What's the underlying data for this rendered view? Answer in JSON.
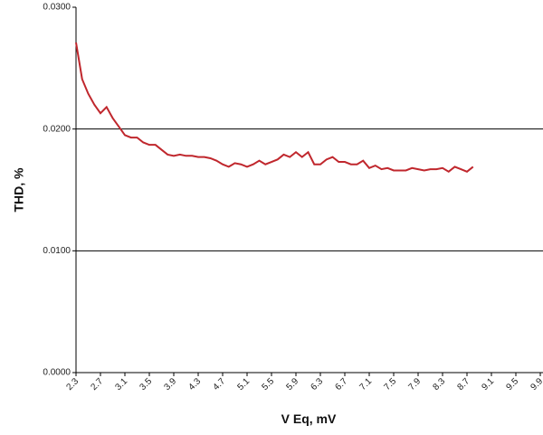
{
  "chart_data": {
    "type": "line",
    "x_label": "V Eq, mV",
    "y_label": "THD, %",
    "x": [
      2.3,
      2.4,
      2.5,
      2.6,
      2.7,
      2.8,
      2.9,
      3.0,
      3.1,
      3.2,
      3.3,
      3.4,
      3.5,
      3.6,
      3.7,
      3.8,
      3.9,
      4.0,
      4.1,
      4.2,
      4.3,
      4.4,
      4.5,
      4.6,
      4.7,
      4.8,
      4.9,
      5.0,
      5.1,
      5.2,
      5.3,
      5.4,
      5.5,
      5.6,
      5.7,
      5.8,
      5.9,
      6.0,
      6.1,
      6.2,
      6.3,
      6.4,
      6.5,
      6.6,
      6.7,
      6.8,
      6.9,
      7.0,
      7.1,
      7.2,
      7.3,
      7.4,
      7.5,
      7.6,
      7.7,
      7.8,
      7.9,
      8.0,
      8.1,
      8.2,
      8.3,
      8.4,
      8.5,
      8.6,
      8.7,
      8.8
    ],
    "series": [
      {
        "color": "#c0272d",
        "values": [
          0.0271,
          0.0241,
          0.0229,
          0.022,
          0.0213,
          0.0218,
          0.0209,
          0.0202,
          0.0195,
          0.0193,
          0.0193,
          0.0189,
          0.0187,
          0.0187,
          0.0183,
          0.0179,
          0.0178,
          0.0179,
          0.0178,
          0.0178,
          0.0177,
          0.0177,
          0.0176,
          0.0174,
          0.0171,
          0.0169,
          0.0172,
          0.0171,
          0.0169,
          0.0171,
          0.0174,
          0.0171,
          0.0173,
          0.0175,
          0.0179,
          0.0177,
          0.0181,
          0.0177,
          0.0181,
          0.0171,
          0.0171,
          0.0175,
          0.0177,
          0.0173,
          0.0173,
          0.0171,
          0.0171,
          0.0174,
          0.0168,
          0.017,
          0.0167,
          0.0168,
          0.0166,
          0.0166,
          0.0166,
          0.0168,
          0.0167,
          0.0166,
          0.0167,
          0.0167,
          0.0168,
          0.0165,
          0.0169,
          0.0167,
          0.0165,
          0.0169
        ]
      }
    ],
    "xlim": [
      2.3,
      9.9
    ],
    "xticks": [
      2.3,
      2.7,
      3.1,
      3.5,
      3.9,
      4.3,
      4.7,
      5.1,
      5.5,
      5.9,
      6.3,
      6.7,
      7.1,
      7.5,
      7.9,
      8.3,
      8.7,
      9.1,
      9.5,
      9.9
    ],
    "ylim": [
      0,
      0.03
    ],
    "yticks": [
      {
        "value": 0,
        "label": "0.0000"
      },
      {
        "value": 0.01,
        "label": "0.0100"
      },
      {
        "value": 0.02,
        "label": "0.0200"
      },
      {
        "value": 0.03,
        "label": "0.0300"
      }
    ],
    "grid": true
  }
}
